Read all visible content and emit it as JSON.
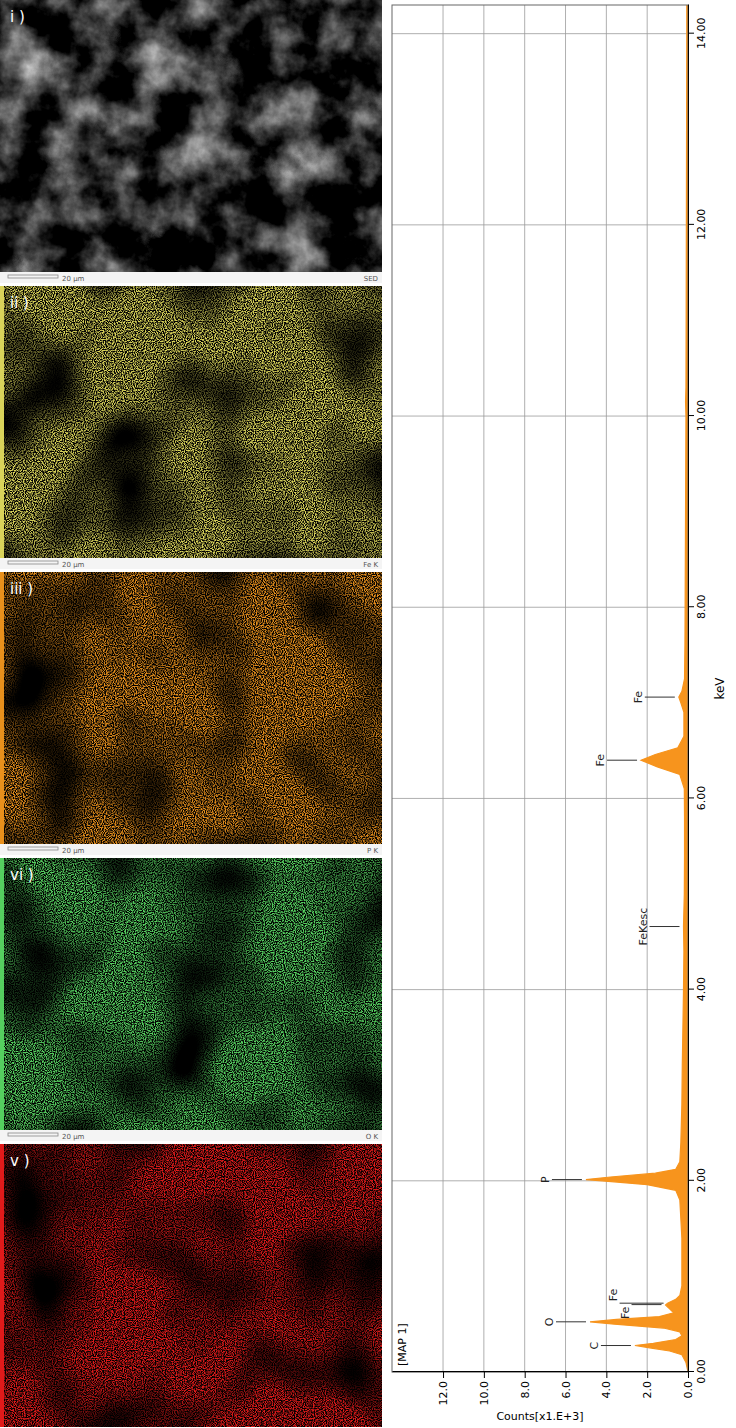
{
  "panels": [
    {
      "label": "i )",
      "type": "sem",
      "element": "SED",
      "scale_bar": "20 µm",
      "color": "#b4b4b4"
    },
    {
      "label": "ii )",
      "type": "map",
      "element": "Fe K",
      "scale_bar": "20 µm",
      "color": "#d9d35a"
    },
    {
      "label": "iii )",
      "type": "map",
      "element": "P K",
      "scale_bar": "20 µm",
      "color": "#e8901c"
    },
    {
      "label": "vi )",
      "type": "map",
      "element": "O K",
      "scale_bar": "20 µm",
      "color": "#55cf5f"
    },
    {
      "label": "v )",
      "type": "map",
      "color": "#e01a1a"
    }
  ],
  "chart_data": {
    "type": "area",
    "title": "[MAP 1]",
    "x_label": "keV",
    "y_label": "Counts[x1.E+3]",
    "color": "#f7941d",
    "grid": true,
    "x": [
      0,
      0.1,
      0.18,
      0.22,
      0.25,
      0.277,
      0.3,
      0.34,
      0.38,
      0.42,
      0.46,
      0.5,
      0.525,
      0.55,
      0.58,
      0.62,
      0.66,
      0.7,
      0.72,
      0.76,
      0.8,
      0.9,
      1,
      1.2,
      1.4,
      1.6,
      1.8,
      1.9,
      1.96,
      2,
      2.013,
      2.04,
      2.08,
      2.12,
      2.2,
      2.4,
      2.8,
      3.2,
      3.6,
      4,
      4.4,
      4.66,
      5,
      5.4,
      5.8,
      6.1,
      6.25,
      6.33,
      6.4,
      6.46,
      6.53,
      6.65,
      6.9,
      7,
      7.06,
      7.12,
      7.25,
      7.6,
      8,
      9,
      10,
      10.15,
      10.3,
      11,
      12,
      13,
      14,
      14.3
    ],
    "values": [
      0,
      0.1,
      0.3,
      0.9,
      1.8,
      2.6,
      1.7,
      0.6,
      0.3,
      0.4,
      1.2,
      3.6,
      4.8,
      3.5,
      1.4,
      0.7,
      0.9,
      1.1,
      1.0,
      0.6,
      0.4,
      0.3,
      0.3,
      0.3,
      0.3,
      0.35,
      0.4,
      0.6,
      2.0,
      4.2,
      5.0,
      3.8,
      1.6,
      0.6,
      0.4,
      0.35,
      0.3,
      0.28,
      0.25,
      0.22,
      0.2,
      0.22,
      0.18,
      0.17,
      0.17,
      0.18,
      0.4,
      1.5,
      2.3,
      1.6,
      0.5,
      0.2,
      0.2,
      0.35,
      0.45,
      0.3,
      0.17,
      0.15,
      0.14,
      0.12,
      0.1,
      0.12,
      0.1,
      0.09,
      0.08,
      0.07,
      0.06,
      0.06
    ],
    "xlim": [
      0,
      14.3
    ],
    "xticks": [
      {
        "value": 0,
        "label": "0.00"
      },
      {
        "value": 2,
        "label": "2.00"
      },
      {
        "value": 4,
        "label": "4.00"
      },
      {
        "value": 6,
        "label": "6.00"
      },
      {
        "value": 8,
        "label": "8.00"
      },
      {
        "value": 10,
        "label": "10.00"
      },
      {
        "value": 12,
        "label": "12.00"
      },
      {
        "value": 14,
        "label": "14.00"
      }
    ],
    "ylim": [
      0,
      14.5
    ],
    "yticks": [
      {
        "value": 0,
        "label": "0.0"
      },
      {
        "value": 2,
        "label": "2.0"
      },
      {
        "value": 4,
        "label": "4.0"
      },
      {
        "value": 6,
        "label": "6.0"
      },
      {
        "value": 8,
        "label": "8.0"
      },
      {
        "value": 10,
        "label": "10.0"
      },
      {
        "value": 12,
        "label": "12.0"
      }
    ],
    "annotations": [
      {
        "text": "C",
        "x": 0.277
      },
      {
        "text": "O",
        "x": 0.525
      },
      {
        "text": "Fe",
        "x": 0.705
      },
      {
        "text": "Fe",
        "x": 0.72
      },
      {
        "text": "P",
        "x": 2.013
      },
      {
        "text": "FeKesc",
        "x": 4.66
      },
      {
        "text": "Fe",
        "x": 6.4
      },
      {
        "text": "Fe",
        "x": 7.06
      }
    ]
  }
}
